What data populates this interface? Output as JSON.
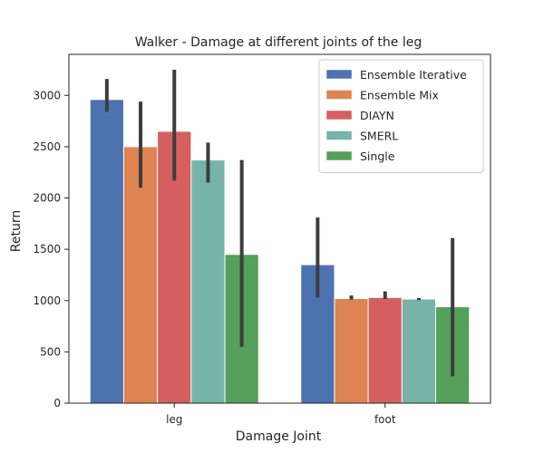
{
  "chart_data": {
    "type": "bar",
    "title": "Walker - Damage at different joints of the leg",
    "xlabel": "Damage Joint",
    "ylabel": "Return",
    "categories": [
      "leg",
      "foot"
    ],
    "ylim": [
      0,
      3400
    ],
    "yticks": [
      0,
      500,
      1000,
      1500,
      2000,
      2500,
      3000
    ],
    "legend_position": "top-right",
    "grid": false,
    "series": [
      {
        "name": "Ensemble Iterative",
        "color": "#4c72b0",
        "values": [
          2960,
          1350
        ],
        "error_low": [
          2840,
          1030
        ],
        "error_high": [
          3160,
          1810
        ]
      },
      {
        "name": "Ensemble Mix",
        "color": "#dd8452",
        "values": [
          2500,
          1020
        ],
        "error_low": [
          2100,
          1010
        ],
        "error_high": [
          2940,
          1050
        ]
      },
      {
        "name": "DIAYN",
        "color": "#d65f5f",
        "values": [
          2650,
          1030
        ],
        "error_low": [
          2170,
          1015
        ],
        "error_high": [
          3250,
          1090
        ]
      },
      {
        "name": "SMERL",
        "color": "#76b3a8",
        "values": [
          2370,
          1015
        ],
        "error_low": [
          2150,
          1005
        ],
        "error_high": [
          2540,
          1025
        ]
      },
      {
        "name": "Single",
        "color": "#55a05a",
        "values": [
          1450,
          940
        ],
        "error_low": [
          550,
          260
        ],
        "error_high": [
          2370,
          1610
        ]
      }
    ]
  }
}
